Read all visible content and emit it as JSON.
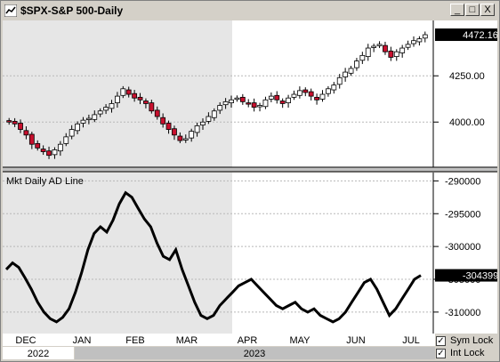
{
  "window": {
    "title": "$SPX-S&P 500-Daily",
    "buttons": [
      "_",
      "□",
      "X"
    ]
  },
  "price_pane": {
    "current_value_label": "4472.16",
    "y_ticks": [
      "4250.00",
      "4000.00"
    ]
  },
  "ad_pane": {
    "title": "Mkt Daily AD Line",
    "current_value_label": "-304399",
    "y_ticks": [
      "-290000",
      "-295000",
      "-300000",
      "-305000",
      "-310000"
    ]
  },
  "x_axis": {
    "months": [
      "DEC",
      "JAN",
      "FEB",
      "MAR",
      "APR",
      "MAY",
      "JUN",
      "JUL"
    ],
    "years": [
      "2022",
      "2023"
    ]
  },
  "options": {
    "sym_lock": {
      "label": "Sym Lock",
      "checked": true
    },
    "int_lock": {
      "label": "Int Lock",
      "checked": true
    }
  },
  "colors": {
    "up_candle": "#ffffff",
    "down_candle": "#c8102e",
    "ad_line": "#000000",
    "shaded_bg": "#e6e6e6",
    "plot_bg": "#ffffff"
  },
  "chart_data": [
    {
      "type": "candlestick",
      "title": "$SPX-S&P 500-Daily",
      "x_labels": [
        "DEC",
        "JAN",
        "FEB",
        "MAR",
        "APR",
        "MAY",
        "JUN",
        "JUL"
      ],
      "ylim": [
        3780,
        4530
      ],
      "close": [
        4000,
        3990,
        3960,
        3930,
        3880,
        3860,
        3840,
        3820,
        3850,
        3880,
        3920,
        3960,
        3990,
        4010,
        4020,
        4040,
        4060,
        4080,
        4100,
        4140,
        4180,
        4150,
        4130,
        4120,
        4100,
        4060,
        4030,
        3990,
        3960,
        3930,
        3900,
        3910,
        3950,
        3980,
        4000,
        4030,
        4060,
        4090,
        4110,
        4120,
        4130,
        4110,
        4100,
        4080,
        4090,
        4120,
        4140,
        4120,
        4100,
        4130,
        4150,
        4170,
        4160,
        4140,
        4120,
        4150,
        4180,
        4200,
        4240,
        4270,
        4290,
        4330,
        4360,
        4400,
        4410,
        4420,
        4380,
        4350,
        4380,
        4400,
        4420,
        4440,
        4450,
        4472.16
      ]
    },
    {
      "type": "line",
      "title": "Mkt Daily AD Line",
      "x_labels": [
        "DEC",
        "JAN",
        "FEB",
        "MAR",
        "APR",
        "MAY",
        "JUN",
        "JUL"
      ],
      "ylim": [
        -313000,
        -289000
      ],
      "values": [
        -303500,
        -302500,
        -303200,
        -304800,
        -306500,
        -308500,
        -310000,
        -311000,
        -311500,
        -310800,
        -309500,
        -307000,
        -304000,
        -300500,
        -298000,
        -297000,
        -297800,
        -296000,
        -293500,
        -291800,
        -292500,
        -294200,
        -295800,
        -297000,
        -299500,
        -301500,
        -302000,
        -300500,
        -303500,
        -306000,
        -308500,
        -310500,
        -311000,
        -310500,
        -309000,
        -308000,
        -307000,
        -306000,
        -305500,
        -305000,
        -306000,
        -307000,
        -308000,
        -309000,
        -309500,
        -309000,
        -308500,
        -309500,
        -310000,
        -309500,
        -310500,
        -311000,
        -311500,
        -311000,
        -310000,
        -308500,
        -307000,
        -305500,
        -305000,
        -306500,
        -308500,
        -310500,
        -309500,
        -308000,
        -306500,
        -305000,
        -304399
      ]
    }
  ]
}
